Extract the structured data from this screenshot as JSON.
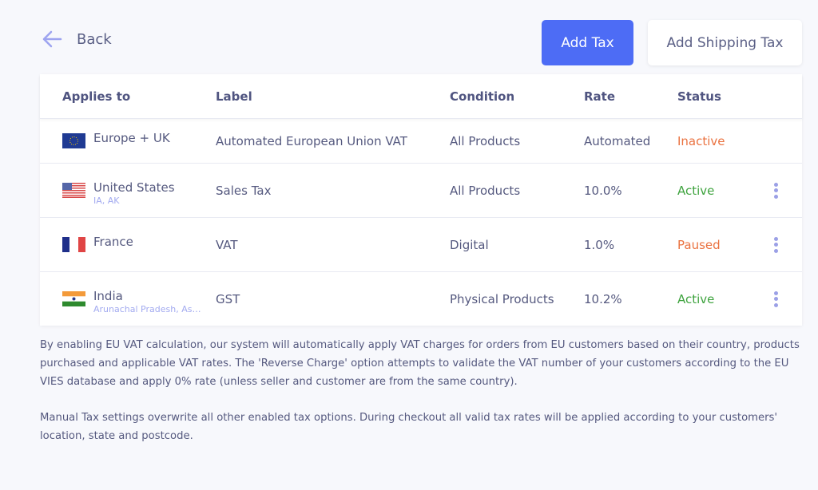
{
  "back_label": "Back",
  "buttons": {
    "add_tax": "Add Tax",
    "add_shipping_tax": "Add Shipping Tax"
  },
  "columns": [
    "Applies to",
    "Label",
    "Condition",
    "Rate",
    "Status"
  ],
  "rows": [
    {
      "country": "Europe + UK",
      "sub": "",
      "flag": "eu-flag",
      "label": "Automated European Union VAT",
      "condition": "All Products",
      "rate": "Automated",
      "status": "Inactive"
    },
    {
      "country": "United States",
      "sub": "IA, AK",
      "flag": "us-flag",
      "label": "Sales Tax",
      "condition": "All Products",
      "rate": "10.0%",
      "status": "Active"
    },
    {
      "country": "France",
      "sub": "",
      "flag": "fr-flag",
      "label": "VAT",
      "condition": "Digital",
      "rate": "1.0%",
      "status": "Paused"
    },
    {
      "country": "India",
      "sub": "Arunachal Pradesh, Assam",
      "flag": "in-flag",
      "label": "GST",
      "condition": "Physical Products",
      "rate": "10.2%",
      "status": "Active"
    }
  ],
  "notes": [
    "By enabling EU VAT calculation, our system will automatically apply VAT charges for orders from EU customers based on their country, products purchased and applicable VAT rates. The 'Reverse Charge' option attempts to validate the VAT number of your customers according to the EU VIES database and apply 0% rate (unless seller and customer are from the same country).",
    "Manual Tax settings overwrite all other enabled tax options. During checkout all valid tax rates will be applied according to your customers' location, state and postcode."
  ],
  "colors": {
    "primary": "#4d6cf5",
    "active": "#3ea33e",
    "inactive": "#ea7240"
  }
}
